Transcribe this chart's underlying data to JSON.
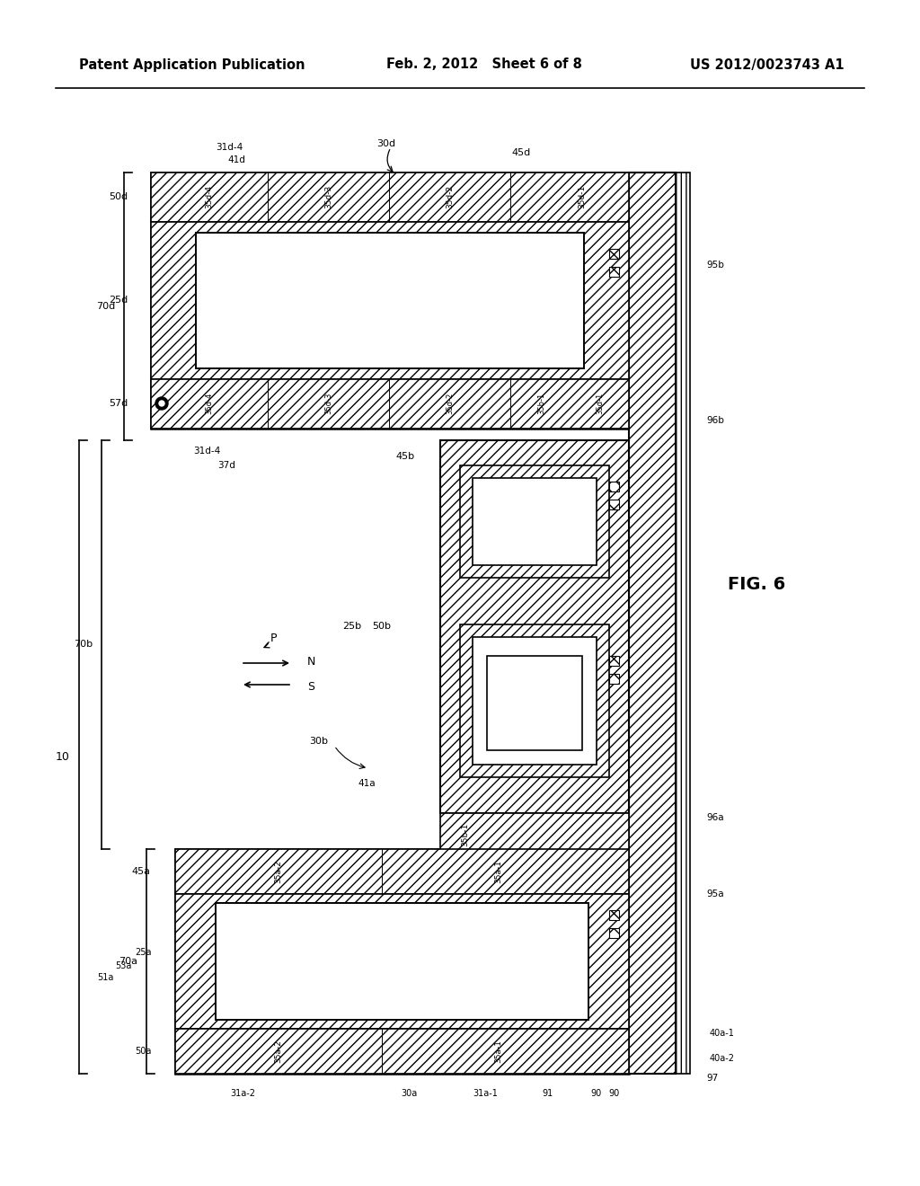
{
  "header_left": "Patent Application Publication",
  "header_mid": "Feb. 2, 2012   Sheet 6 of 8",
  "header_right": "US 2012/0023743 A1",
  "fig_label": "FIG. 6",
  "bg_color": "#ffffff"
}
